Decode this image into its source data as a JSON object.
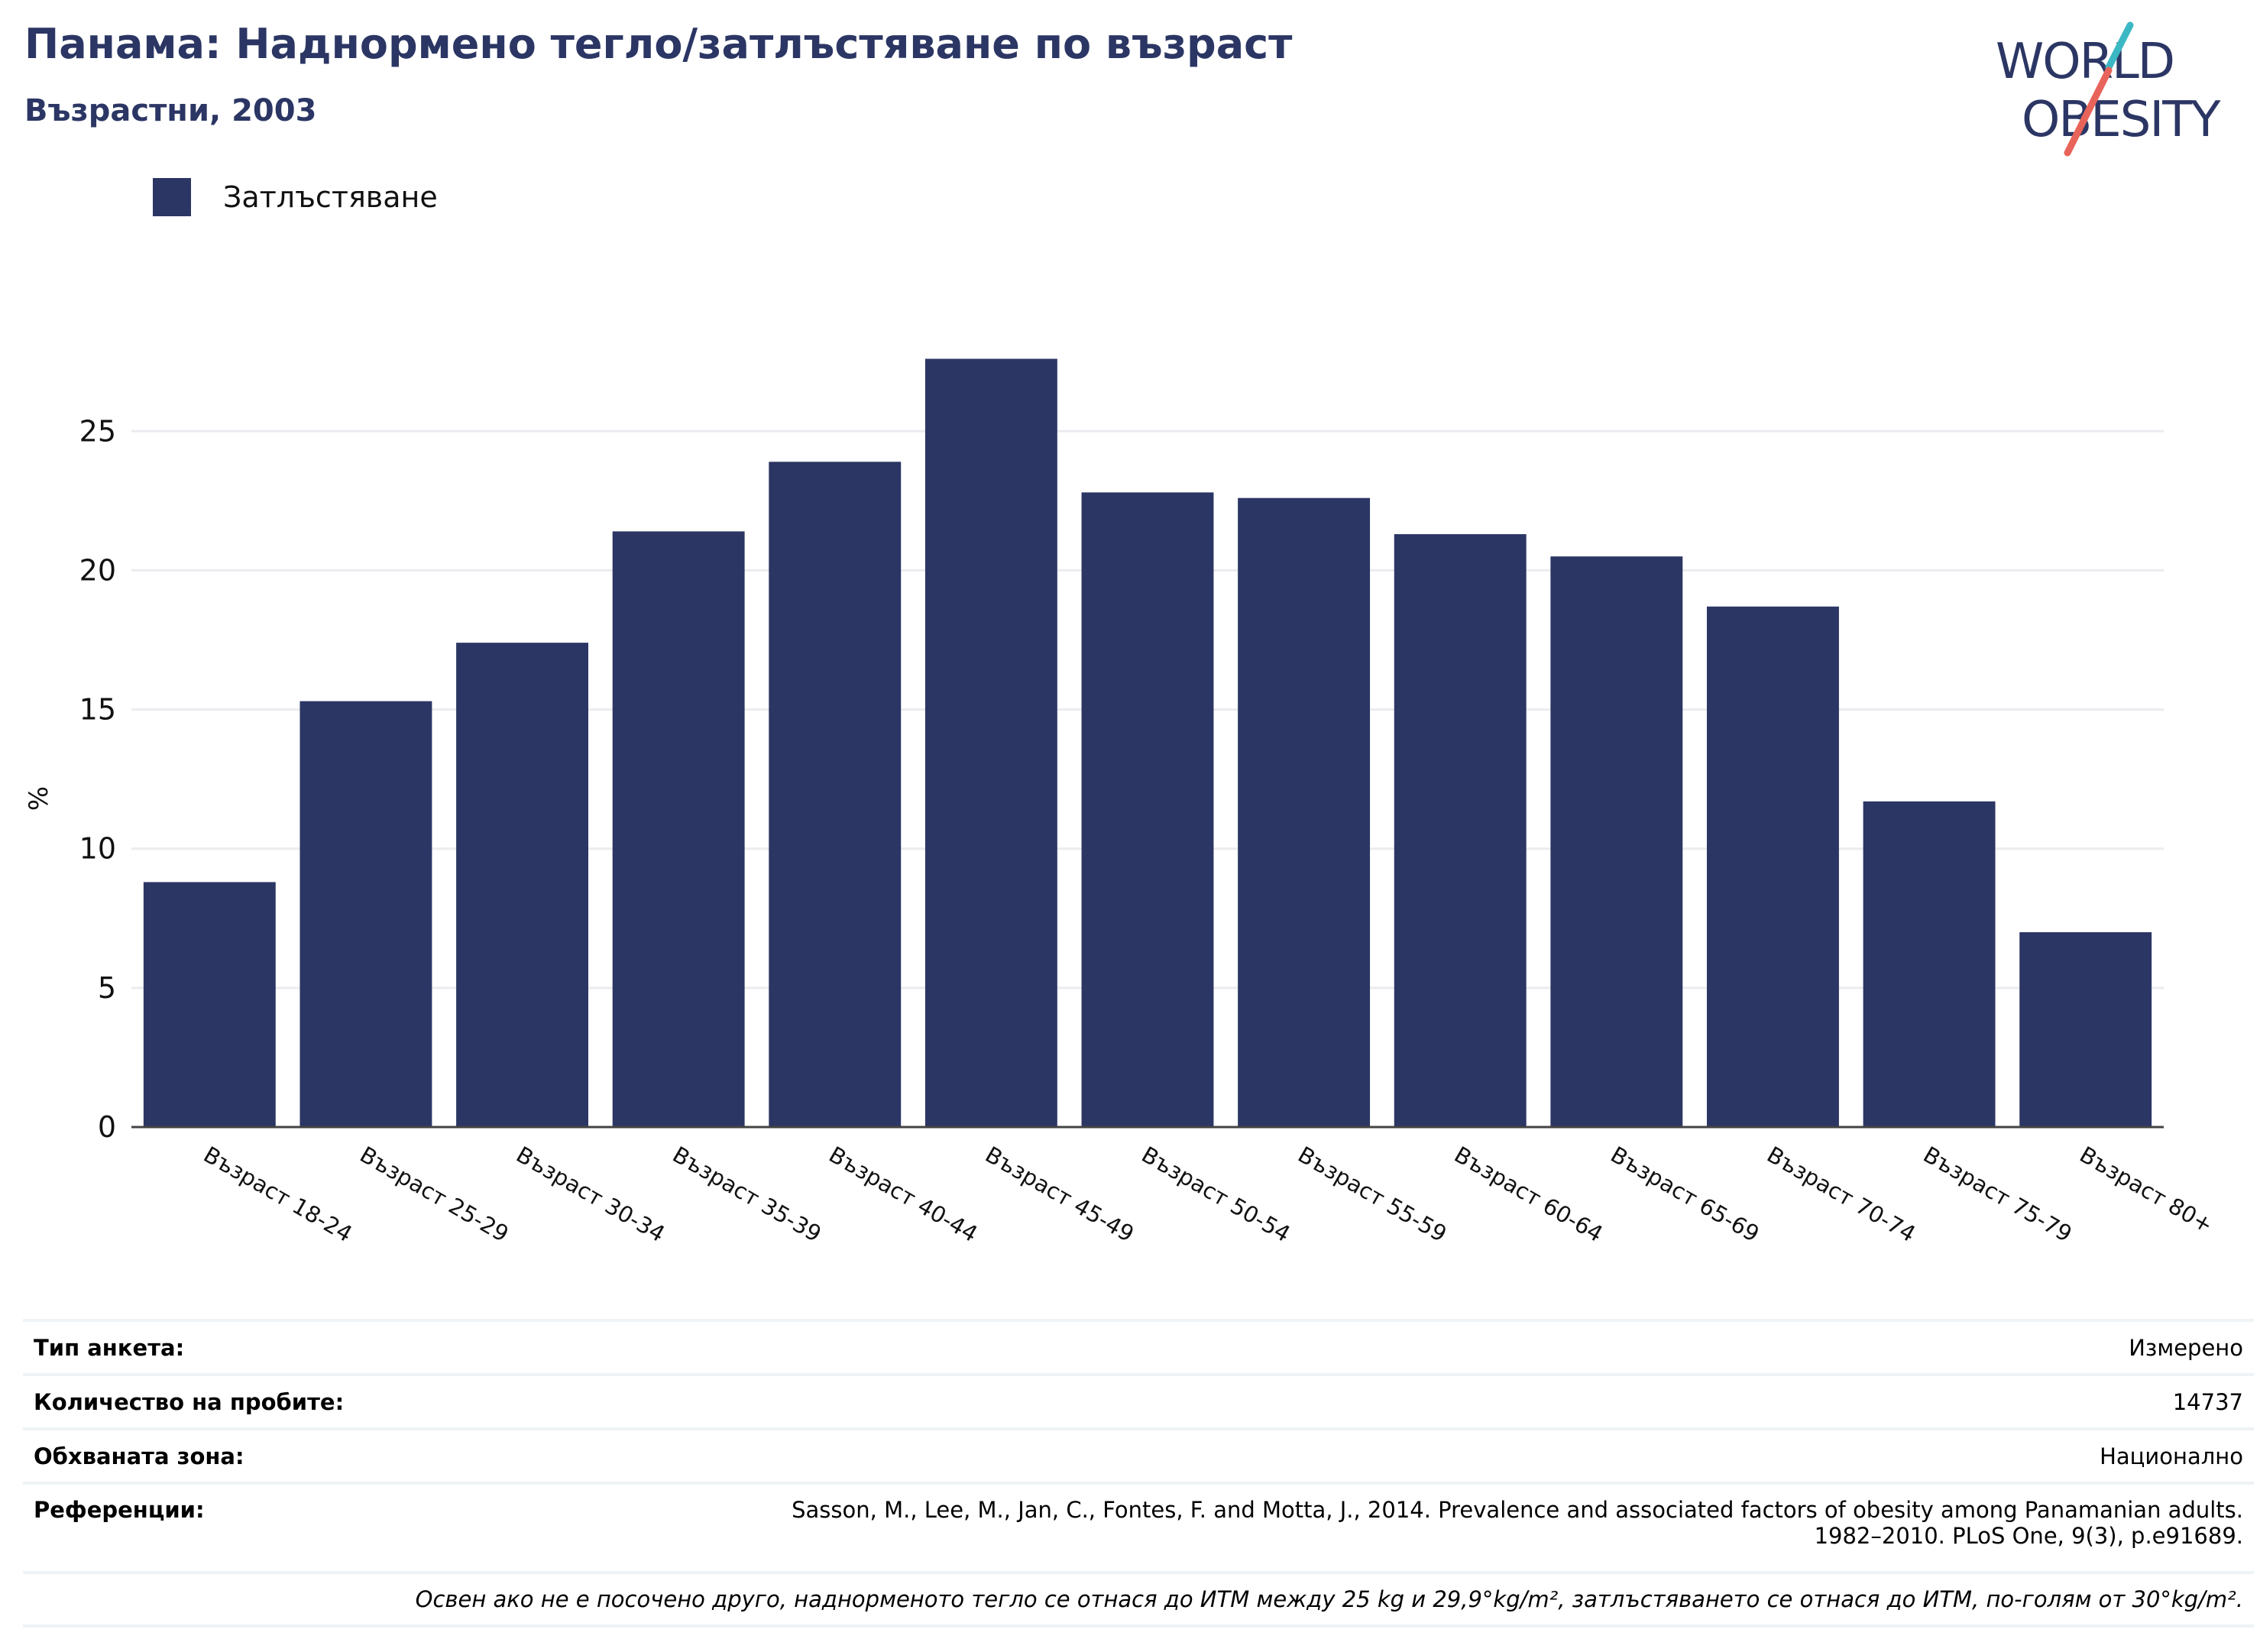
{
  "title": "Панама: Наднормено тегло/затлъстяване по възраст",
  "subtitle": "Възрастни, 2003",
  "logo": {
    "line1": "WORLD",
    "line2": "OBESITY",
    "accent_teal": "#3bb8c3",
    "accent_red": "#e8645a"
  },
  "legend": {
    "label": "Затлъстяване",
    "color": "#2b3664"
  },
  "chart_data": {
    "type": "bar",
    "ylabel": "%",
    "xlabel": "",
    "ylim": [
      0,
      28
    ],
    "yticks": [
      0,
      5,
      10,
      15,
      20,
      25
    ],
    "grid": true,
    "legend_position": "top-left",
    "categories": [
      "Възраст 18-24",
      "Възраст 25-29",
      "Възраст 30-34",
      "Възраст 35-39",
      "Възраст 40-44",
      "Възраст 45-49",
      "Възраст 50-54",
      "Възраст 55-59",
      "Възраст 60-64",
      "Възраст 65-69",
      "Възраст 70-74",
      "Възраст 75-79",
      "Възраст 80+"
    ],
    "series": [
      {
        "name": "Затлъстяване",
        "color": "#2b3664",
        "values": [
          8.8,
          15.3,
          17.4,
          21.4,
          23.9,
          27.6,
          22.8,
          22.6,
          21.3,
          20.5,
          18.7,
          11.7,
          7.0
        ]
      }
    ]
  },
  "info": {
    "survey_type_label": "Тип анкета:",
    "survey_type_value": "Измерено",
    "sample_label": "Количество на пробите:",
    "sample_value": "14737",
    "area_label": "Обхваната зона:",
    "area_value": "Национално",
    "references_label": "Референции:",
    "references_line1": "Sasson, M., Lee, M., Jan, C., Fontes, F. and Motta, J., 2014. Prevalence and associated factors of obesity among Panamanian adults.",
    "references_line2": "1982–2010. PLoS One, 9(3), p.e91689.",
    "note": "Освен ако не е посочено друго, наднорменото тегло се отнася до ИТМ между 25 kg и 29,9°kg/m², затлъстяването се отнася до ИТМ, по-голям от 30°kg/m²."
  }
}
